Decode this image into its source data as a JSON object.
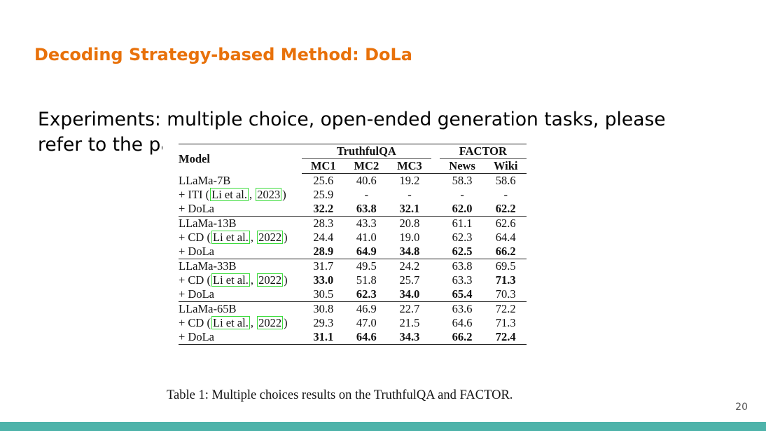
{
  "slide": {
    "title": "Decoding Strategy-based Method: DoLa",
    "body_text": "Experiments: multiple choice, open-ended generation tasks, please refer to the paper",
    "page_number": "20",
    "accent_color": "#e8710a",
    "footer_color": "#4eb3aa"
  },
  "table": {
    "header": {
      "model": "Model",
      "group1": "TruthfulQA",
      "group2": "FACTOR",
      "columns": [
        "MC1",
        "MC2",
        "MC3",
        "News",
        "Wiki"
      ]
    },
    "groups": [
      {
        "rows": [
          {
            "model": "LLaMa-7B",
            "values": [
              "25.6",
              "40.6",
              "19.2",
              "58.3",
              "58.6"
            ],
            "bold": [
              false,
              false,
              false,
              false,
              false
            ]
          },
          {
            "prefix": "+ ITI (",
            "cite_author": "Li et al.",
            "sep": ", ",
            "cite_year": "2023",
            "suffix": ")",
            "values": [
              "25.9",
              "-",
              "-",
              "-",
              "-"
            ],
            "bold": [
              false,
              false,
              false,
              false,
              false
            ]
          },
          {
            "model": "+ DoLa",
            "values": [
              "32.2",
              "63.8",
              "32.1",
              "62.0",
              "62.2"
            ],
            "bold": [
              true,
              true,
              true,
              true,
              true
            ]
          }
        ]
      },
      {
        "rows": [
          {
            "model": "LLaMa-13B",
            "values": [
              "28.3",
              "43.3",
              "20.8",
              "61.1",
              "62.6"
            ],
            "bold": [
              false,
              false,
              false,
              false,
              false
            ]
          },
          {
            "prefix": "+ CD (",
            "cite_author": "Li et al.",
            "sep": ", ",
            "cite_year": "2022",
            "suffix": ")",
            "values": [
              "24.4",
              "41.0",
              "19.0",
              "62.3",
              "64.4"
            ],
            "bold": [
              false,
              false,
              false,
              false,
              false
            ]
          },
          {
            "model": "+ DoLa",
            "values": [
              "28.9",
              "64.9",
              "34.8",
              "62.5",
              "66.2"
            ],
            "bold": [
              true,
              true,
              true,
              true,
              true
            ]
          }
        ]
      },
      {
        "rows": [
          {
            "model": "LLaMa-33B",
            "values": [
              "31.7",
              "49.5",
              "24.2",
              "63.8",
              "69.5"
            ],
            "bold": [
              false,
              false,
              false,
              false,
              false
            ]
          },
          {
            "prefix": "+ CD (",
            "cite_author": "Li et al.",
            "sep": ", ",
            "cite_year": "2022",
            "suffix": ")",
            "values": [
              "33.0",
              "51.8",
              "25.7",
              "63.3",
              "71.3"
            ],
            "bold": [
              true,
              false,
              false,
              false,
              true
            ]
          },
          {
            "model": "+ DoLa",
            "values": [
              "30.5",
              "62.3",
              "34.0",
              "65.4",
              "70.3"
            ],
            "bold": [
              false,
              true,
              true,
              true,
              false
            ]
          }
        ]
      },
      {
        "rows": [
          {
            "model": "LLaMa-65B",
            "values": [
              "30.8",
              "46.9",
              "22.7",
              "63.6",
              "72.2"
            ],
            "bold": [
              false,
              false,
              false,
              false,
              false
            ]
          },
          {
            "prefix": "+ CD (",
            "cite_author": "Li et al.",
            "sep": ", ",
            "cite_year": "2022",
            "suffix": ")",
            "values": [
              "29.3",
              "47.0",
              "21.5",
              "64.6",
              "71.3"
            ],
            "bold": [
              false,
              false,
              false,
              false,
              false
            ]
          },
          {
            "model": "+ DoLa",
            "values": [
              "31.1",
              "64.6",
              "34.3",
              "66.2",
              "72.4"
            ],
            "bold": [
              true,
              true,
              true,
              true,
              true
            ]
          }
        ]
      }
    ],
    "caption": "Table 1: Multiple choices results on the TruthfulQA and FACTOR."
  }
}
